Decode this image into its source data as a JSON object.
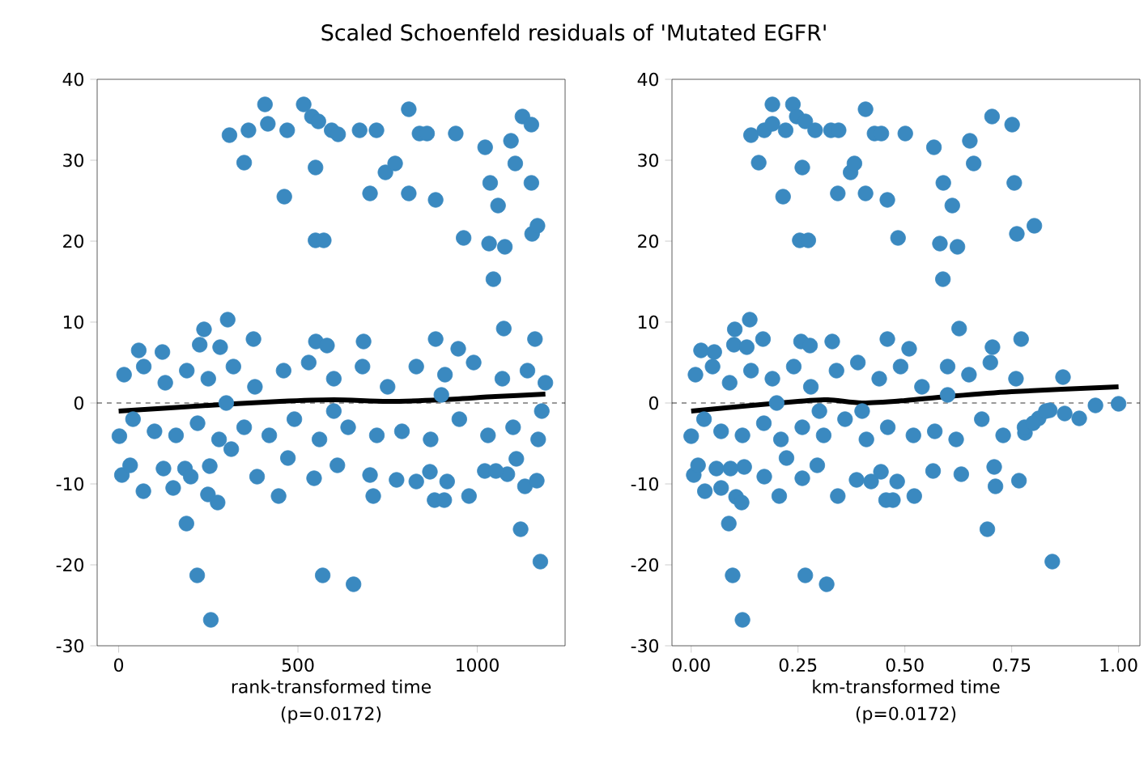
{
  "chart_data": [
    {
      "type": "scatter",
      "title": "Scaled Schoenfeld residuals of 'Mutated EGFR'",
      "xlabel": "rank-transformed time",
      "annotations": [
        "(p=0.0172)"
      ],
      "xlim": [
        -60,
        1245
      ],
      "ylim": [
        -30,
        40
      ],
      "xticks": [
        0,
        500,
        1000
      ],
      "yticks": [
        -30,
        -20,
        -10,
        0,
        10,
        20,
        30,
        40
      ],
      "series": [
        {
          "color": "#3a89c0",
          "marker": "circle",
          "x": [
            309,
            350,
            362,
            408,
            416,
            462,
            470,
            516,
            539,
            549,
            557,
            549,
            572,
            594,
            612,
            672,
            719,
            701,
            744,
            771,
            809,
            809,
            839,
            860,
            884,
            940,
            962,
            1022,
            1036,
            1058,
            1033,
            1045,
            1077,
            1094,
            1106,
            1126,
            1151,
            1151,
            1153,
            1168,
            1074,
            304,
            238,
            226,
            283,
            376,
            550,
            581,
            683,
            884,
            1161,
            56,
            122,
            947,
            2,
            9,
            32,
            69,
            125,
            152,
            185,
            189,
            201,
            219,
            254,
            249,
            276,
            257,
            386,
            446,
            472,
            545,
            569,
            610,
            655,
            701,
            710,
            775,
            830,
            868,
            881,
            908,
            916,
            977,
            1021,
            1084,
            1121,
            1133,
            1166,
            1176,
            1109,
            1052,
            314,
            15,
            40,
            70,
            100,
            130,
            160,
            190,
            220,
            250,
            280,
            320,
            350,
            380,
            420,
            460,
            490,
            530,
            560,
            600,
            640,
            680,
            720,
            750,
            790,
            830,
            870,
            910,
            950,
            990,
            1030,
            1070,
            1100,
            1140,
            1170,
            1190,
            300,
            600,
            900,
            1180
          ],
          "values": [
            33.1,
            29.7,
            33.7,
            36.9,
            34.5,
            25.5,
            33.7,
            36.9,
            35.4,
            29.1,
            34.8,
            20.1,
            20.1,
            33.7,
            33.2,
            33.7,
            33.7,
            25.9,
            28.5,
            29.6,
            36.3,
            25.9,
            33.3,
            33.3,
            25.1,
            33.3,
            20.4,
            31.6,
            27.2,
            24.4,
            19.7,
            15.3,
            19.3,
            32.4,
            29.6,
            35.4,
            34.4,
            27.2,
            20.9,
            21.9,
            9.2,
            10.3,
            9.1,
            7.2,
            6.9,
            7.9,
            7.6,
            7.1,
            7.6,
            7.9,
            7.9,
            6.5,
            6.3,
            6.7,
            -4.1,
            -8.9,
            -7.7,
            -10.9,
            -8.1,
            -10.5,
            -8.1,
            -14.9,
            -9.1,
            -21.3,
            -7.8,
            -11.3,
            -12.3,
            -26.8,
            -9.1,
            -11.5,
            -6.8,
            -9.3,
            -21.3,
            -7.7,
            -22.4,
            -8.9,
            -11.5,
            -9.5,
            -9.7,
            -8.5,
            -12.0,
            -12.0,
            -9.7,
            -11.5,
            -8.4,
            -8.8,
            -15.6,
            -10.3,
            -9.6,
            -19.6,
            -6.9,
            -8.4,
            -5.7,
            3.5,
            -2,
            4.5,
            -3.5,
            2.5,
            -4,
            4,
            -2.5,
            3,
            -4.5,
            4.5,
            -3,
            2,
            -4,
            4,
            -2,
            5,
            -4.5,
            3,
            -3,
            4.5,
            -4,
            2,
            -3.5,
            4.5,
            -4.5,
            3.5,
            -2,
            5,
            -4,
            3,
            -3,
            4,
            -4.5,
            2.5,
            0,
            -1,
            1,
            -1
          ]
        },
        {
          "type": "line",
          "color": "#000000",
          "x": [
            0,
            250,
            450,
            600,
            750,
            900,
            1050,
            1190
          ],
          "values": [
            -1.0,
            -0.3,
            0.2,
            0.4,
            0.2,
            0.4,
            0.8,
            1.1
          ]
        }
      ],
      "ref_lines": [
        {
          "axis": "y",
          "value": 0,
          "color": "#000000",
          "line_style": "dashed"
        }
      ]
    },
    {
      "type": "scatter",
      "xlabel": "km-transformed time",
      "annotations": [
        "(p=0.0172)"
      ],
      "xlim": [
        -0.045,
        1.05
      ],
      "ylim": [
        -30,
        40
      ],
      "xticks": [
        {
          "value": 0,
          "label": "0.00"
        },
        {
          "value": 0.25,
          "label": "0.25"
        },
        {
          "value": 0.5,
          "label": "0.50"
        },
        {
          "value": 0.75,
          "label": "0.75"
        },
        {
          "value": 1,
          "label": "1.00"
        }
      ],
      "yticks": [
        -30,
        -20,
        -10,
        0,
        10,
        20,
        30,
        40
      ],
      "series": [
        {
          "color": "#3a89c0",
          "marker": "circle",
          "x": [
            0.14,
            0.158,
            0.171,
            0.19,
            0.19,
            0.215,
            0.221,
            0.238,
            0.247,
            0.26,
            0.267,
            0.254,
            0.274,
            0.29,
            0.327,
            0.345,
            0.343,
            0.373,
            0.382,
            0.408,
            0.408,
            0.429,
            0.445,
            0.459,
            0.501,
            0.484,
            0.568,
            0.59,
            0.611,
            0.582,
            0.589,
            0.623,
            0.652,
            0.661,
            0.704,
            0.751,
            0.756,
            0.762,
            0.803,
            0.627,
            0.137,
            0.102,
            0.1,
            0.13,
            0.168,
            0.257,
            0.278,
            0.33,
            0.459,
            0.772,
            0.023,
            0.054,
            0.51,
            0.705,
            0,
            0.006,
            0.016,
            0.032,
            0.059,
            0.07,
            0.092,
            0.088,
            0.105,
            0.097,
            0.124,
            0.118,
            0.12,
            0.171,
            0.206,
            0.223,
            0.26,
            0.267,
            0.295,
            0.317,
            0.343,
            0.387,
            0.421,
            0.444,
            0.456,
            0.472,
            0.482,
            0.522,
            0.566,
            0.632,
            0.693,
            0.712,
            0.767,
            0.845,
            0.709,
            0.781,
            0.813,
            0.908,
            0.946,
            1.0,
            0.874,
            0.839,
            0.87,
            0.01,
            0.03,
            0.05,
            0.07,
            0.09,
            0.12,
            0.14,
            0.17,
            0.19,
            0.21,
            0.24,
            0.26,
            0.28,
            0.31,
            0.34,
            0.36,
            0.39,
            0.41,
            0.44,
            0.46,
            0.49,
            0.52,
            0.54,
            0.57,
            0.6,
            0.62,
            0.65,
            0.68,
            0.7,
            0.73,
            0.76,
            0.78,
            0.8,
            0.83,
            0.2,
            0.4,
            0.6,
            0.3
          ],
          "values": [
            33.1,
            29.7,
            33.7,
            36.9,
            34.5,
            25.5,
            33.7,
            36.9,
            35.4,
            29.1,
            34.8,
            20.1,
            20.1,
            33.7,
            33.7,
            33.7,
            25.9,
            28.5,
            29.6,
            36.3,
            25.9,
            33.3,
            33.3,
            25.1,
            33.3,
            20.4,
            31.6,
            27.2,
            24.4,
            19.7,
            15.3,
            19.3,
            32.4,
            29.6,
            35.4,
            34.4,
            27.2,
            20.9,
            21.9,
            9.2,
            10.3,
            9.1,
            7.2,
            6.9,
            7.9,
            7.6,
            7.1,
            7.6,
            7.9,
            7.9,
            6.5,
            6.3,
            6.7,
            6.9,
            -4.1,
            -8.9,
            -7.7,
            -10.9,
            -8.1,
            -10.5,
            -8.1,
            -14.9,
            -11.6,
            -21.3,
            -7.9,
            -12.3,
            -26.8,
            -9.1,
            -11.5,
            -6.8,
            -9.3,
            -21.3,
            -7.7,
            -22.4,
            -11.5,
            -9.5,
            -9.7,
            -8.5,
            -12.0,
            -12.0,
            -9.7,
            -11.5,
            -8.4,
            -8.8,
            -15.6,
            -10.3,
            -9.6,
            -19.6,
            -7.9,
            -3.7,
            -1.9,
            -1.9,
            -0.3,
            -0.1,
            -1.3,
            -0.9,
            3.2,
            3.5,
            -2,
            4.5,
            -3.5,
            2.5,
            -4,
            4,
            -2.5,
            3,
            -4.5,
            4.5,
            -3,
            2,
            -4,
            4,
            -2,
            5,
            -4.5,
            3,
            -3,
            4.5,
            -4,
            2,
            -3.5,
            4.5,
            -4.5,
            3.5,
            -2,
            5,
            -4,
            3,
            -3,
            -2.5,
            -1,
            0,
            -1,
            1,
            -1
          ]
        },
        {
          "type": "line",
          "color": "#000000",
          "x": [
            0,
            0.1,
            0.25,
            0.32,
            0.4,
            0.5,
            0.6,
            0.75,
            1.0
          ],
          "values": [
            -1.0,
            -0.5,
            0.2,
            0.4,
            0.0,
            0.3,
            0.8,
            1.4,
            2.0
          ]
        }
      ],
      "ref_lines": [
        {
          "axis": "y",
          "value": 0,
          "color": "#000000",
          "line_style": "dashed"
        }
      ]
    }
  ]
}
